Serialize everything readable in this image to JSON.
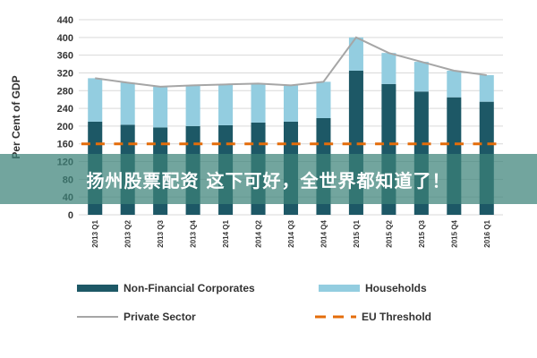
{
  "chart_data": {
    "type": "bar",
    "stacked": true,
    "ylabel": "Per Cent of GDP",
    "ylim": [
      0,
      440
    ],
    "yticks": [
      0,
      40,
      80,
      120,
      160,
      200,
      240,
      280,
      320,
      360,
      400,
      440
    ],
    "categories": [
      "2013 Q1",
      "2013 Q2",
      "2013 Q3",
      "2013 Q4",
      "2014 Q1",
      "2014 Q2",
      "2014 Q3",
      "2014 Q4",
      "2015 Q1",
      "2015 Q2",
      "2015 Q3",
      "2015 Q4",
      "2016 Q1"
    ],
    "series": [
      {
        "name": "Non-Financial Corporates",
        "type": "bar",
        "color": "#1d5866",
        "values": [
          210,
          203,
          197,
          200,
          202,
          208,
          210,
          218,
          325,
          295,
          278,
          265,
          255
        ]
      },
      {
        "name": "Households",
        "type": "bar",
        "color": "#93cde0",
        "values": [
          98,
          95,
          92,
          92,
          92,
          88,
          82,
          82,
          75,
          70,
          67,
          60,
          60
        ]
      },
      {
        "name": "Private Sector",
        "type": "line",
        "color": "#a6a6a6",
        "values": [
          308,
          298,
          289,
          292,
          294,
          296,
          292,
          300,
          400,
          365,
          345,
          325,
          315
        ]
      },
      {
        "name": "EU Threshold",
        "type": "line-dashed",
        "color": "#e46c0a",
        "values": [
          160,
          160,
          160,
          160,
          160,
          160,
          160,
          160,
          160,
          160,
          160,
          160,
          160
        ]
      }
    ],
    "grid": true,
    "legend_position": "bottom"
  },
  "banner": {
    "text": "扬州股票配资 这下可好，全世界都知道了！"
  }
}
